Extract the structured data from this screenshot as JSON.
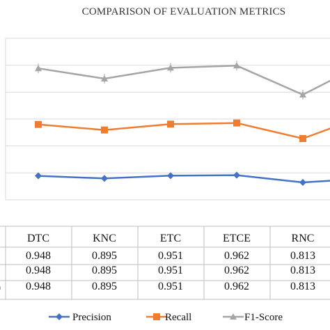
{
  "chart_data": {
    "type": "line",
    "title": "COMPARISON OF EVALUATION METRICS",
    "categories": [
      "DTC",
      "KNC",
      "ETC",
      "ETCE",
      "RNC"
    ],
    "series": [
      {
        "name": "Precision",
        "color": "#4472C4",
        "marker": "diamond",
        "values": [
          0.948,
          0.895,
          0.951,
          0.962,
          0.813
        ]
      },
      {
        "name": "Recall",
        "color": "#ED7D31",
        "marker": "square",
        "values": [
          0.948,
          0.895,
          0.951,
          0.962,
          0.813
        ]
      },
      {
        "name": "F1-Score",
        "color": "#A5A5A5",
        "marker": "triangle",
        "values": [
          0.948,
          0.895,
          0.951,
          0.962,
          0.813
        ]
      }
    ],
    "table": {
      "rows": [
        [
          "0.948",
          "0.895",
          "0.951",
          "0.962",
          "0.813"
        ],
        [
          "0.948",
          "0.895",
          "0.951",
          "0.962",
          "0.813"
        ],
        [
          "0.948",
          "0.895",
          "0.951",
          "0.962",
          "0.813"
        ]
      ]
    },
    "legend": "bottom",
    "grid": true
  }
}
